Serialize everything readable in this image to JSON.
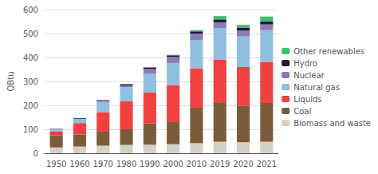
{
  "chart_data": {
    "type": "bar",
    "stacked": true,
    "ylabel": "QBtu",
    "categories": [
      "1950",
      "1960",
      "1970",
      "1980",
      "1990",
      "2000",
      "2010",
      "2019",
      "2020",
      "2021"
    ],
    "series": [
      {
        "name": "Biomass and waste",
        "color": "#d6d0c4",
        "values": [
          24,
          28,
          32,
          35,
          36,
          38,
          42,
          48,
          46,
          48
        ]
      },
      {
        "name": "Coal",
        "color": "#7a5c3a",
        "values": [
          50,
          50,
          58,
          65,
          88,
          92,
          148,
          162,
          152,
          162
        ]
      },
      {
        "name": "Liquids",
        "color": "#f04040",
        "values": [
          18,
          48,
          82,
          118,
          130,
          155,
          165,
          180,
          162,
          172
        ]
      },
      {
        "name": "Natural gas",
        "color": "#90bfe0",
        "values": [
          8,
          18,
          42,
          58,
          78,
          92,
          118,
          132,
          128,
          132
        ]
      },
      {
        "name": "Nuclear",
        "color": "#8B7BB5",
        "values": [
          0,
          0,
          4,
          7,
          20,
          25,
          27,
          24,
          24,
          24
        ]
      },
      {
        "name": "Hydro",
        "color": "#1c1c3a",
        "values": [
          2,
          3,
          4,
          5,
          6,
          7,
          9,
          13,
          13,
          13
        ]
      },
      {
        "name": "Other renewables",
        "color": "#3dbf6e",
        "values": [
          0,
          0,
          0,
          0,
          0,
          2,
          5,
          14,
          11,
          20
        ]
      }
    ],
    "ylim": [
      0,
      600
    ],
    "yticks": [
      0,
      100,
      200,
      300,
      400,
      500,
      600
    ],
    "grid": true,
    "legend": "right"
  }
}
